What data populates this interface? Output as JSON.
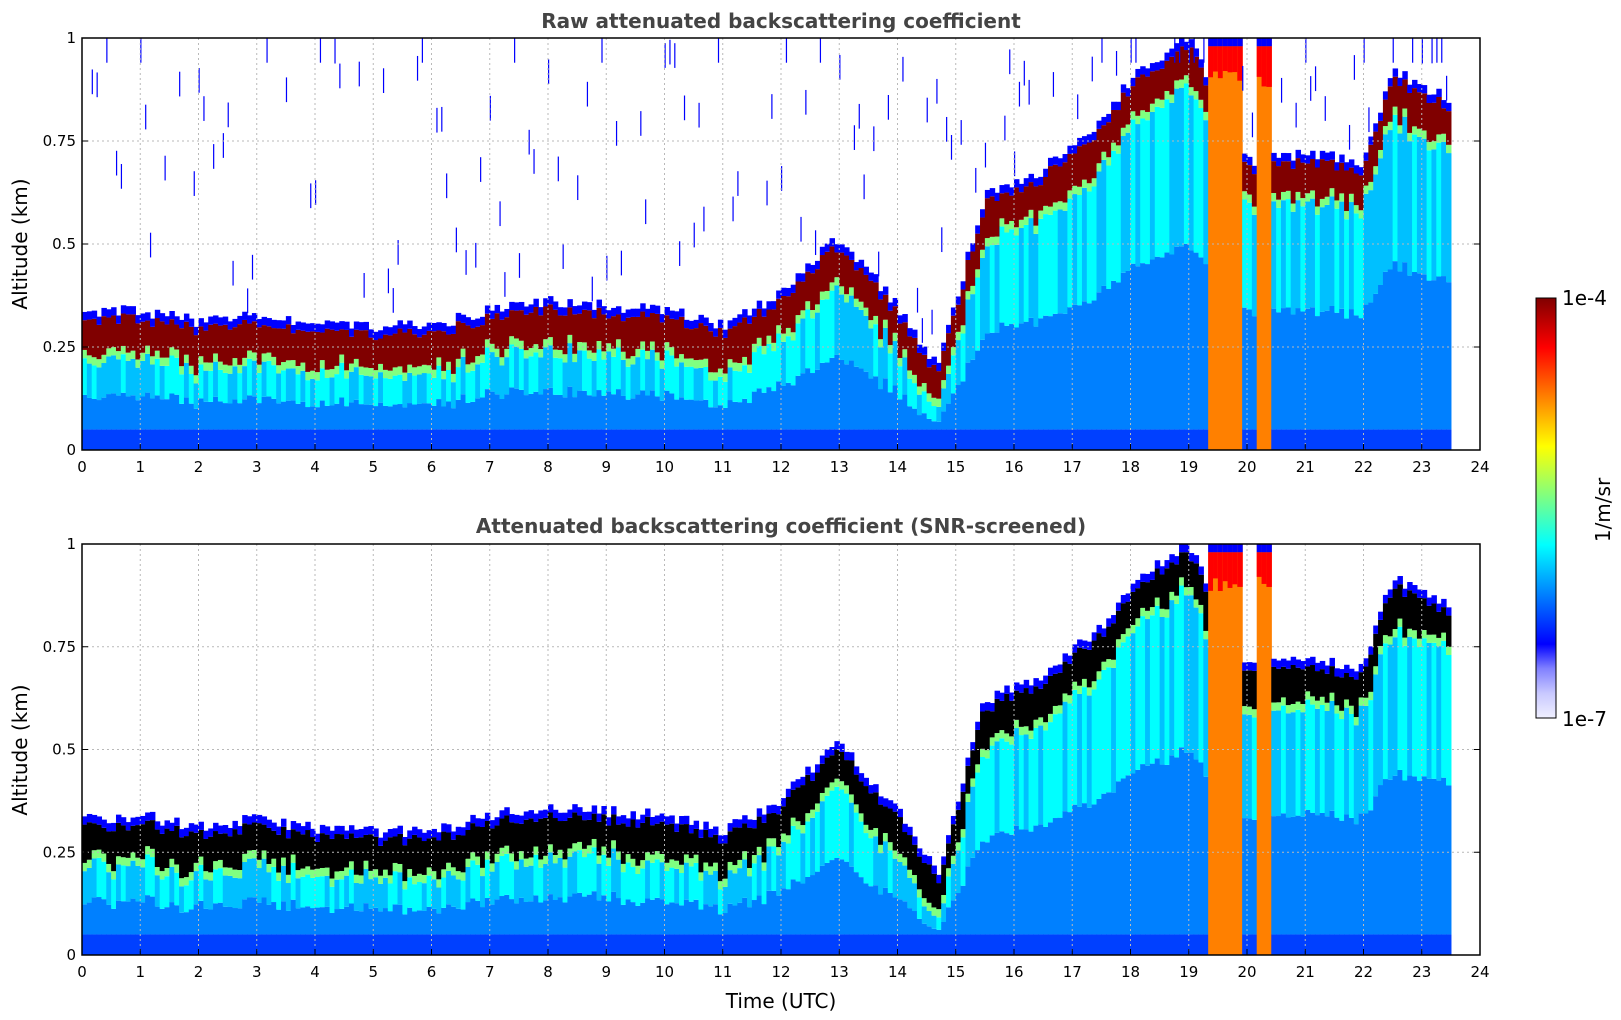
{
  "chart_data": [
    {
      "type": "heatmap",
      "title": "Raw attenuated backscattering coefficient",
      "xlabel": "",
      "ylabel": "Altitude (km)",
      "xlim": [
        0,
        24
      ],
      "ylim": [
        0,
        1
      ],
      "xticks": [
        "0",
        "1",
        "2",
        "3",
        "4",
        "5",
        "6",
        "7",
        "8",
        "9",
        "10",
        "11",
        "12",
        "13",
        "14",
        "15",
        "16",
        "17",
        "18",
        "19",
        "20",
        "21",
        "22",
        "23",
        "24"
      ],
      "yticks": [
        "0",
        "0.25",
        "0.5",
        "0.75",
        "1"
      ],
      "grid": true,
      "colorscale": "jet",
      "layer_top_km": [
        {
          "t": 0.0,
          "z": 0.33
        },
        {
          "t": 1.0,
          "z": 0.34
        },
        {
          "t": 2.0,
          "z": 0.31
        },
        {
          "t": 3.0,
          "z": 0.33
        },
        {
          "t": 4.0,
          "z": 0.31
        },
        {
          "t": 5.0,
          "z": 0.3
        },
        {
          "t": 6.0,
          "z": 0.3
        },
        {
          "t": 7.0,
          "z": 0.34
        },
        {
          "t": 8.0,
          "z": 0.36
        },
        {
          "t": 9.0,
          "z": 0.35
        },
        {
          "t": 10.0,
          "z": 0.34
        },
        {
          "t": 11.0,
          "z": 0.3
        },
        {
          "t": 12.0,
          "z": 0.38
        },
        {
          "t": 13.0,
          "z": 0.52
        },
        {
          "t": 14.0,
          "z": 0.35
        },
        {
          "t": 14.7,
          "z": 0.2
        },
        {
          "t": 15.5,
          "z": 0.62
        },
        {
          "t": 16.5,
          "z": 0.68
        },
        {
          "t": 17.5,
          "z": 0.8
        },
        {
          "t": 18.0,
          "z": 0.9
        },
        {
          "t": 19.0,
          "z": 1.0
        },
        {
          "t": 20.0,
          "z": 0.7
        },
        {
          "t": 21.0,
          "z": 0.72
        },
        {
          "t": 22.0,
          "z": 0.7
        },
        {
          "t": 22.5,
          "z": 0.92
        },
        {
          "t": 23.5,
          "z": 0.85
        }
      ]
    },
    {
      "type": "heatmap",
      "title": "Attenuated backscattering coefficient (SNR-screened)",
      "xlabel": "Time (UTC)",
      "ylabel": "Altitude (km)",
      "xlim": [
        0,
        24
      ],
      "ylim": [
        0,
        1
      ],
      "xticks": [
        "0",
        "1",
        "2",
        "3",
        "4",
        "5",
        "6",
        "7",
        "8",
        "9",
        "10",
        "11",
        "12",
        "13",
        "14",
        "15",
        "16",
        "17",
        "18",
        "19",
        "20",
        "21",
        "22",
        "23",
        "24"
      ],
      "yticks": [
        "0",
        "0.25",
        "0.5",
        "0.75",
        "1"
      ],
      "grid": true,
      "colorscale": "jet"
    }
  ],
  "colorbar": {
    "max_label": "1e-4",
    "min_label": "1e-7",
    "label": "1/m/sr",
    "colors": [
      "#f0f0ff",
      "#c8c8ff",
      "#8080ff",
      "#0000ff",
      "#0040ff",
      "#0080ff",
      "#00c0ff",
      "#00ffff",
      "#40ffc0",
      "#80ff80",
      "#c0ff40",
      "#ffff00",
      "#ffc000",
      "#ff8000",
      "#ff4000",
      "#ff0000",
      "#c00000",
      "#800000"
    ]
  }
}
